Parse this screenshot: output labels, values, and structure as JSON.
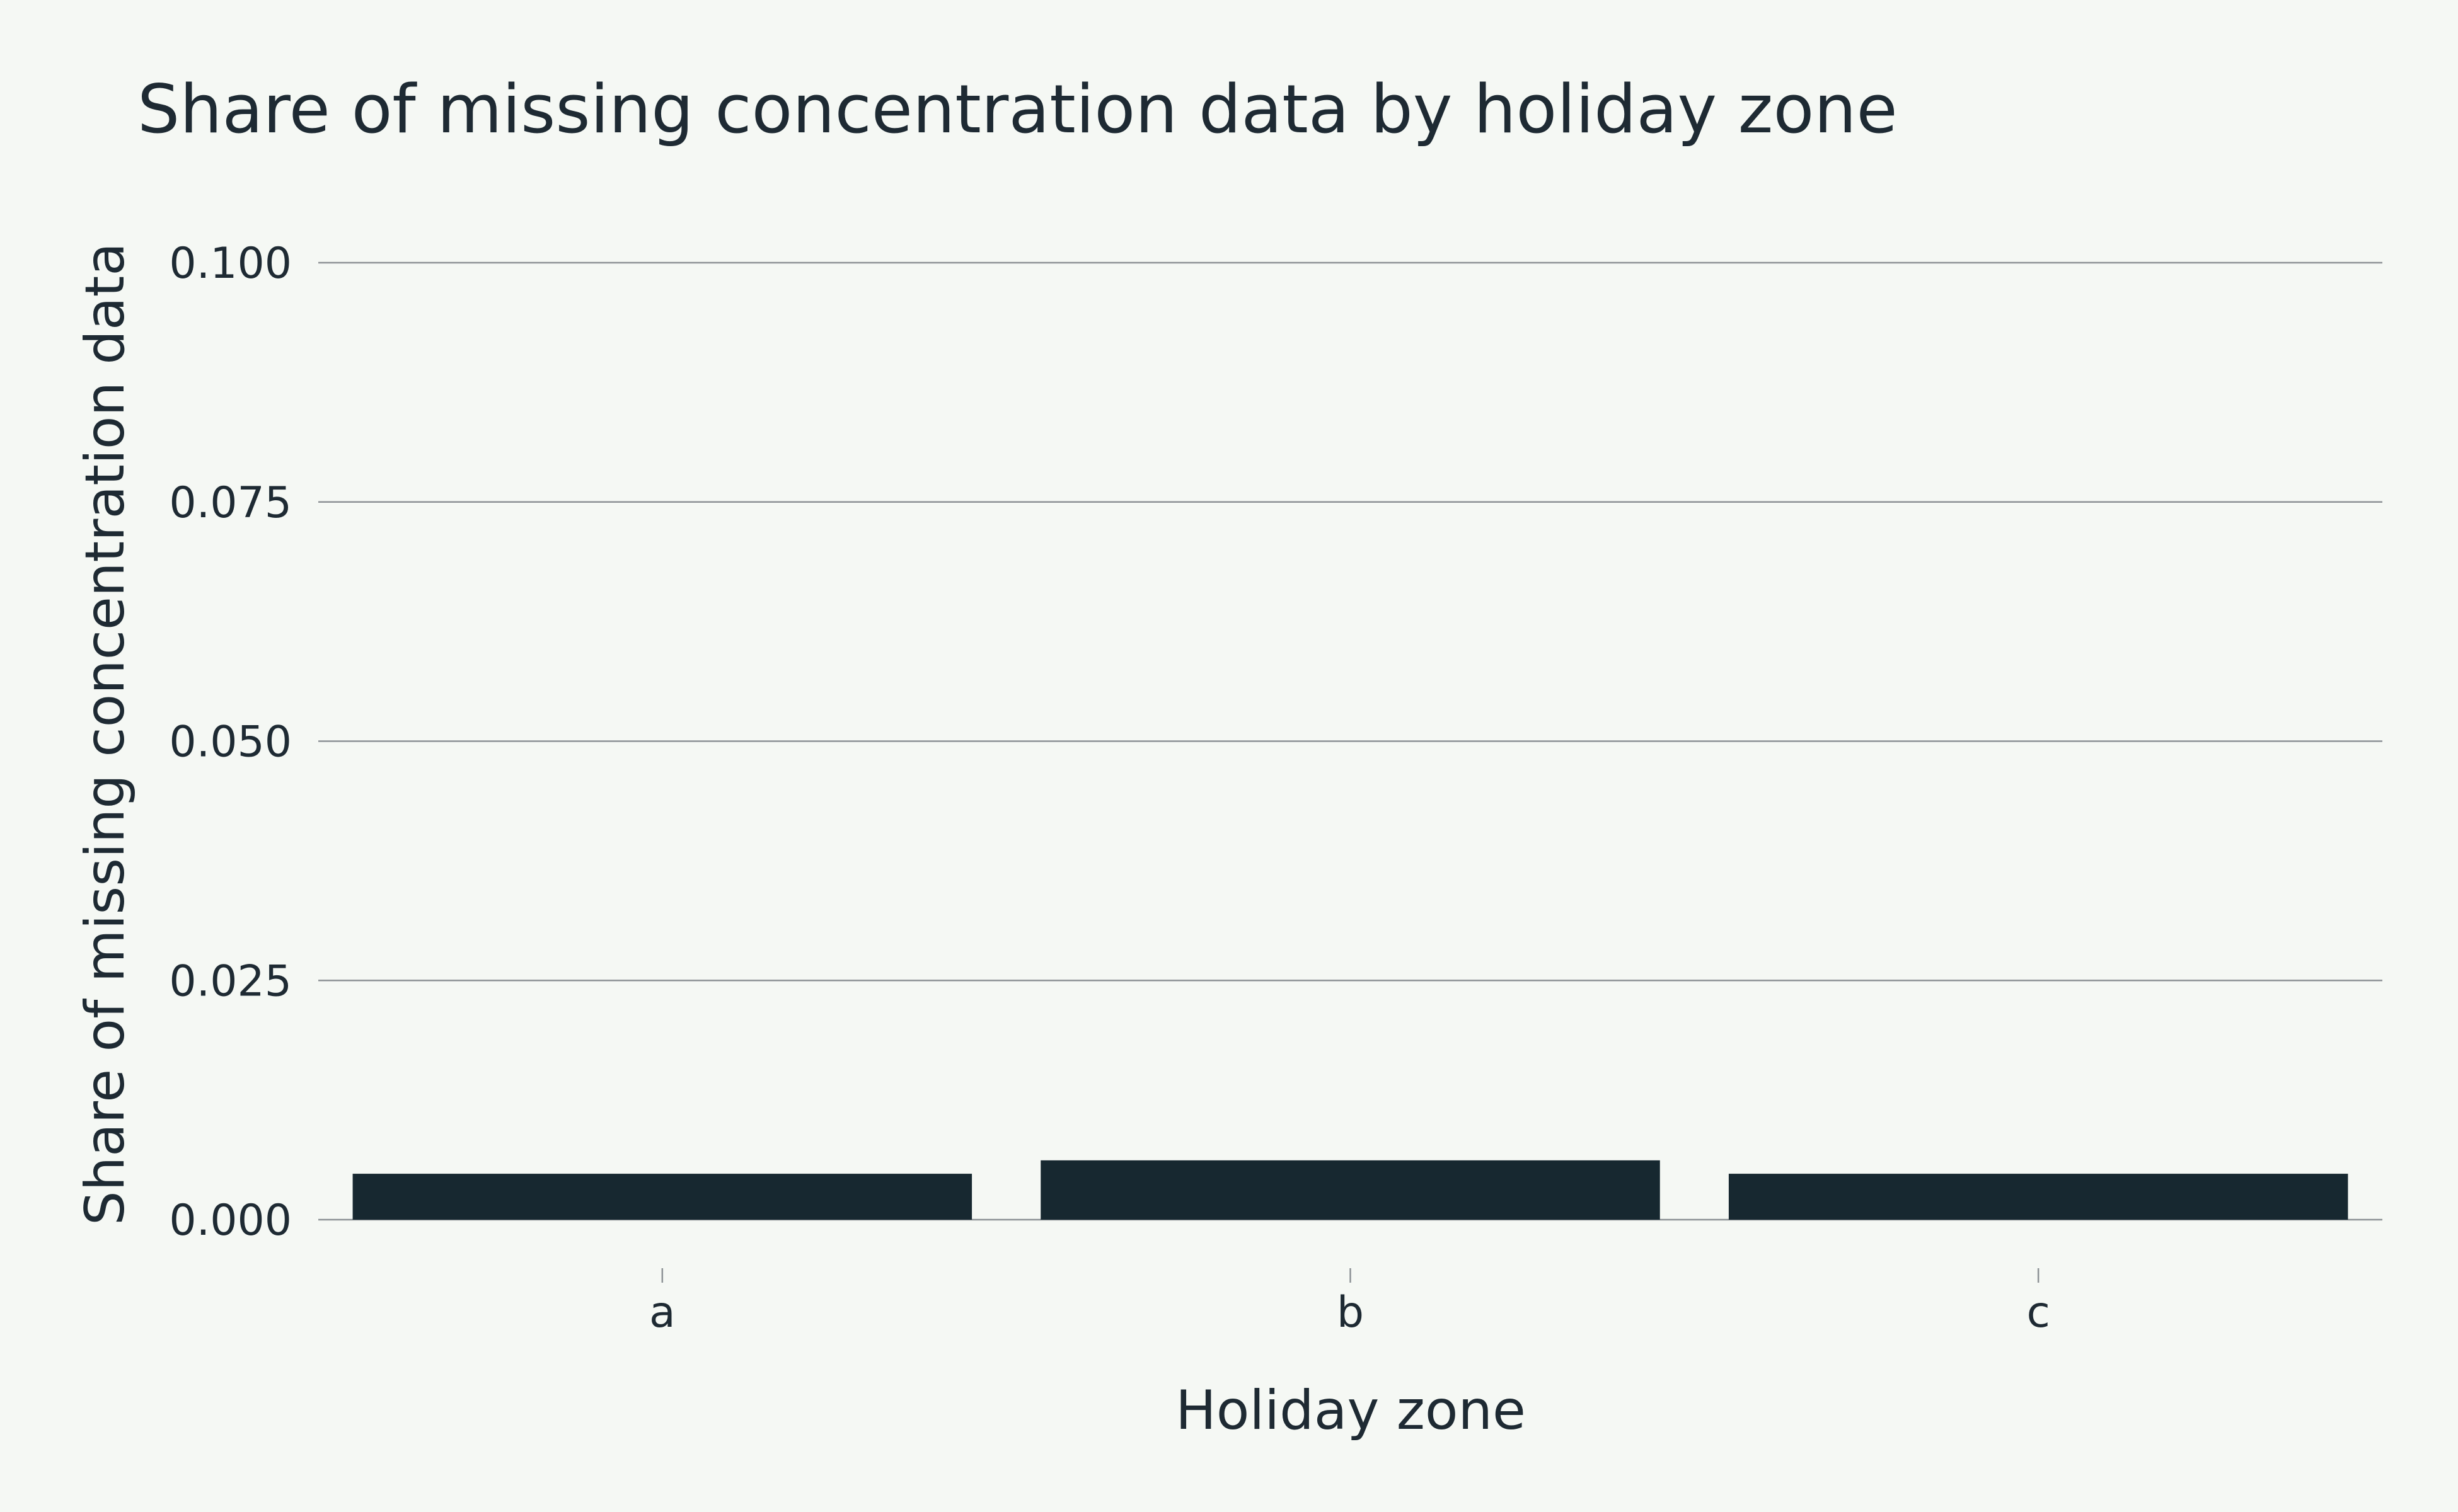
{
  "chart_data": {
    "type": "bar",
    "title": "Share of missing concentration data by holiday zone",
    "xlabel": "Holiday zone",
    "ylabel": "Share of missing concentration data",
    "categories": [
      "a",
      "b",
      "c"
    ],
    "values": [
      0.0048,
      0.0062,
      0.0048
    ],
    "ylim": [
      0,
      0.1
    ],
    "yticks": [
      "0.000",
      "0.025",
      "0.050",
      "0.075",
      "0.100"
    ],
    "ytick_values": [
      0,
      0.025,
      0.05,
      0.075,
      0.1
    ],
    "grid": true,
    "legend": "none",
    "colors": {
      "bar": "#172830",
      "background": "#f5f8f4",
      "grid": "#8d9296",
      "text": "#1e2a33"
    }
  }
}
